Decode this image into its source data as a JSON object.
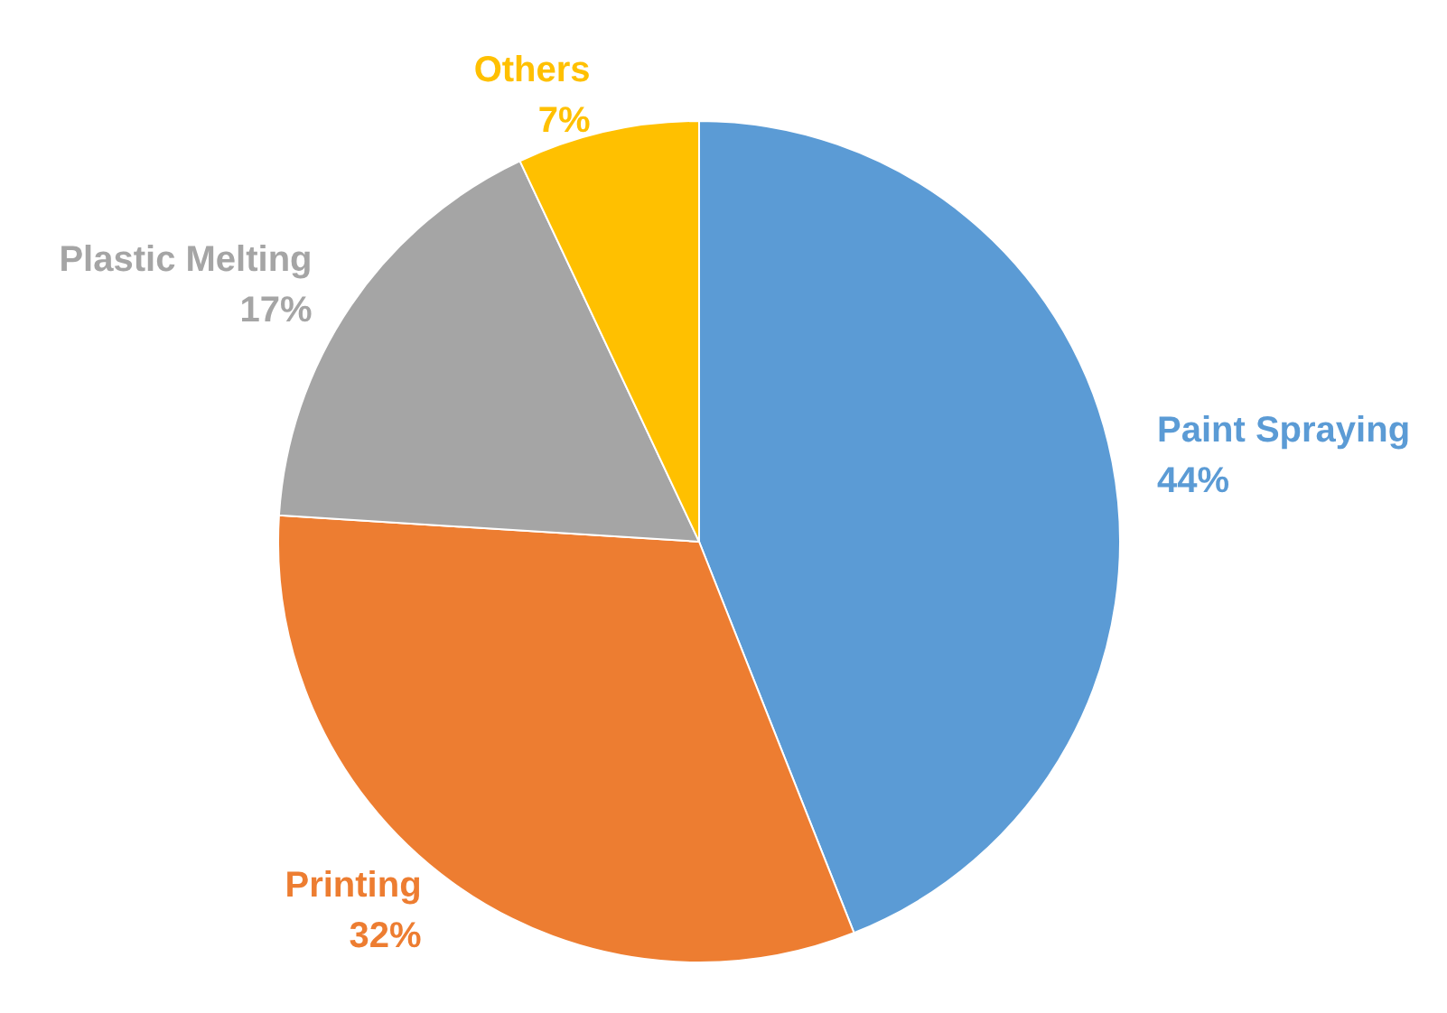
{
  "chart_data": {
    "type": "pie",
    "categories": [
      "Paint Spraying",
      "Printing",
      "Plastic Melting",
      "Others"
    ],
    "values": [
      44,
      32,
      17,
      7
    ],
    "colors": [
      "#5b9bd5",
      "#ed7d31",
      "#a5a5a5",
      "#ffc000"
    ],
    "value_labels": [
      "44%",
      "32%",
      "17%",
      "7%"
    ]
  }
}
